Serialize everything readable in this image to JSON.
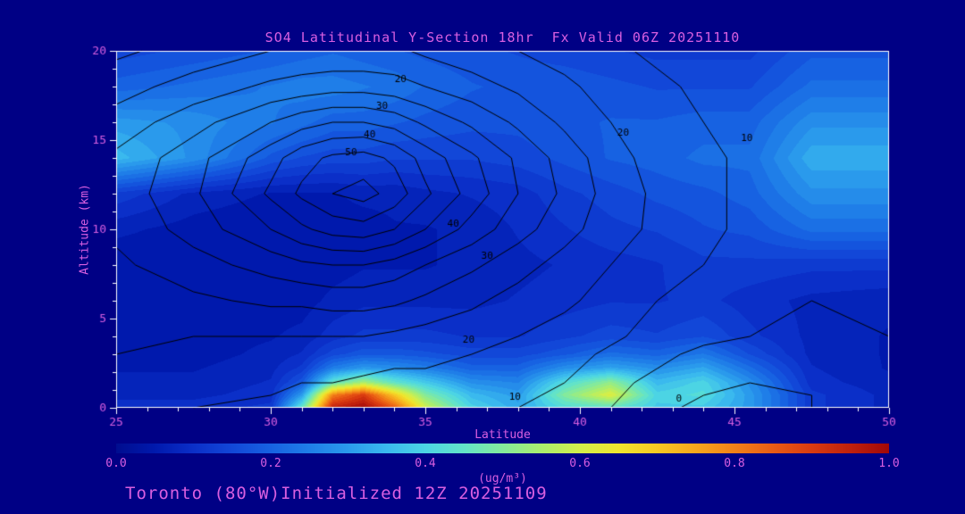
{
  "chart": {
    "title": "SO4 Latitudinal Y-Section 18hr  Fx Valid 06Z 20251110",
    "footer": "Toronto (80°W)Initialized 12Z 20251109",
    "colors": {
      "background": "#000085",
      "text_magenta": "#d95fe0",
      "frame": "#ffffff",
      "contour": "#000000"
    }
  },
  "chart_data": {
    "type": "heatmap",
    "title": "SO4 Latitudinal Y-Section 18hr  Fx Valid 06Z 20251110",
    "xlabel": "Latitude",
    "ylabel": "Altitude (km)",
    "x_range": [
      25,
      50
    ],
    "y_range": [
      0,
      20
    ],
    "x_major_ticks": [
      25,
      30,
      35,
      40,
      45,
      50
    ],
    "x_minor_step": 1,
    "y_major_ticks": [
      0,
      5,
      10,
      15,
      20
    ],
    "y_minor_step": 1,
    "lat_points": [
      25,
      27.5,
      30,
      31,
      32,
      33,
      34,
      35,
      36.5,
      38,
      39.5,
      41,
      42.5,
      44,
      45.5,
      47.5,
      50
    ],
    "alt_points": [
      0,
      0.7,
      1.4,
      2.2,
      3,
      4,
      6,
      8,
      10,
      12,
      14,
      16,
      18,
      20
    ],
    "fill_values_ugm3": [
      [
        0.1,
        0.1,
        0.12,
        0.45,
        0.95,
        1.0,
        0.85,
        0.6,
        0.4,
        0.32,
        0.42,
        0.45,
        0.38,
        0.38,
        0.3,
        0.12,
        0.08
      ],
      [
        0.08,
        0.08,
        0.1,
        0.3,
        0.8,
        0.9,
        0.7,
        0.5,
        0.35,
        0.3,
        0.5,
        0.62,
        0.4,
        0.42,
        0.3,
        0.12,
        0.08
      ],
      [
        0.07,
        0.07,
        0.09,
        0.18,
        0.45,
        0.55,
        0.45,
        0.38,
        0.28,
        0.26,
        0.42,
        0.52,
        0.35,
        0.4,
        0.28,
        0.1,
        0.07
      ],
      [
        0.06,
        0.06,
        0.08,
        0.12,
        0.25,
        0.3,
        0.28,
        0.25,
        0.2,
        0.2,
        0.28,
        0.32,
        0.28,
        0.32,
        0.22,
        0.09,
        0.06
      ],
      [
        0.05,
        0.05,
        0.07,
        0.09,
        0.15,
        0.18,
        0.18,
        0.17,
        0.15,
        0.15,
        0.18,
        0.22,
        0.2,
        0.24,
        0.16,
        0.08,
        0.06
      ],
      [
        0.05,
        0.05,
        0.06,
        0.07,
        0.1,
        0.12,
        0.12,
        0.12,
        0.11,
        0.11,
        0.13,
        0.15,
        0.14,
        0.16,
        0.12,
        0.08,
        0.06
      ],
      [
        0.04,
        0.04,
        0.05,
        0.05,
        0.07,
        0.08,
        0.08,
        0.08,
        0.08,
        0.09,
        0.1,
        0.11,
        0.11,
        0.12,
        0.1,
        0.08,
        0.07
      ],
      [
        0.04,
        0.04,
        0.04,
        0.04,
        0.05,
        0.06,
        0.06,
        0.06,
        0.07,
        0.08,
        0.09,
        0.1,
        0.11,
        0.13,
        0.13,
        0.12,
        0.12
      ],
      [
        0.07,
        0.05,
        0.04,
        0.04,
        0.05,
        0.05,
        0.06,
        0.06,
        0.07,
        0.09,
        0.11,
        0.13,
        0.14,
        0.16,
        0.17,
        0.22,
        0.22
      ],
      [
        0.13,
        0.08,
        0.06,
        0.06,
        0.06,
        0.07,
        0.07,
        0.08,
        0.09,
        0.1,
        0.13,
        0.15,
        0.17,
        0.18,
        0.2,
        0.28,
        0.28
      ],
      [
        0.35,
        0.28,
        0.18,
        0.16,
        0.15,
        0.15,
        0.14,
        0.14,
        0.14,
        0.15,
        0.17,
        0.19,
        0.2,
        0.22,
        0.22,
        0.33,
        0.33
      ],
      [
        0.3,
        0.28,
        0.24,
        0.22,
        0.2,
        0.2,
        0.19,
        0.18,
        0.17,
        0.17,
        0.18,
        0.19,
        0.19,
        0.2,
        0.2,
        0.28,
        0.28
      ],
      [
        0.2,
        0.22,
        0.24,
        0.25,
        0.25,
        0.24,
        0.23,
        0.21,
        0.19,
        0.18,
        0.18,
        0.17,
        0.16,
        0.16,
        0.16,
        0.22,
        0.22
      ],
      [
        0.15,
        0.17,
        0.19,
        0.2,
        0.21,
        0.2,
        0.19,
        0.18,
        0.17,
        0.16,
        0.15,
        0.14,
        0.13,
        0.13,
        0.13,
        0.18,
        0.18
      ]
    ],
    "colormap_stops": [
      [
        0.0,
        "#000d8f"
      ],
      [
        0.05,
        "#0019ad"
      ],
      [
        0.1,
        "#0b2fc8"
      ],
      [
        0.15,
        "#1247d8"
      ],
      [
        0.2,
        "#1762e2"
      ],
      [
        0.25,
        "#1f7ee8"
      ],
      [
        0.3,
        "#2a9aec"
      ],
      [
        0.35,
        "#3ab9ee"
      ],
      [
        0.4,
        "#4cd4e4"
      ],
      [
        0.45,
        "#63e3c8"
      ],
      [
        0.5,
        "#84ea9c"
      ],
      [
        0.55,
        "#aaee6e"
      ],
      [
        0.6,
        "#d2ef4b"
      ],
      [
        0.65,
        "#efe52e"
      ],
      [
        0.7,
        "#f7c823"
      ],
      [
        0.75,
        "#f7a61d"
      ],
      [
        0.8,
        "#f28118"
      ],
      [
        0.85,
        "#e95b14"
      ],
      [
        0.9,
        "#d93a10"
      ],
      [
        0.95,
        "#c0200c"
      ],
      [
        1.0,
        "#a00808"
      ]
    ],
    "colorbar": {
      "min": 0.0,
      "max": 1.0,
      "tick_labels": [
        "0.0",
        "0.2",
        "0.4",
        "0.6",
        "0.8",
        "1.0"
      ],
      "units": "(ug/m³)"
    },
    "contours": {
      "levels": [
        0,
        5,
        10,
        15,
        20,
        25,
        30,
        35,
        40,
        45,
        50,
        55
      ],
      "values": [
        [
          16,
          15,
          14,
          13,
          13,
          12,
          12,
          11,
          11,
          10,
          8,
          5,
          1,
          -1,
          -2,
          0,
          1
        ],
        [
          17,
          16,
          15,
          14,
          14,
          13,
          13,
          12,
          12,
          11,
          9,
          6,
          2,
          0,
          -1,
          0,
          1
        ],
        [
          18,
          17,
          16,
          15,
          15,
          14,
          14,
          13,
          13,
          12,
          10,
          7,
          3,
          1,
          0,
          1,
          2
        ],
        [
          19,
          18,
          17,
          17,
          16,
          16,
          15,
          15,
          14,
          13,
          11,
          8,
          5,
          3,
          2,
          2,
          3
        ],
        [
          20,
          19,
          19,
          18,
          18,
          17,
          17,
          16,
          15,
          14,
          12,
          9,
          6,
          4,
          3,
          3,
          4
        ],
        [
          21,
          20,
          20,
          20,
          20,
          20,
          19,
          18,
          17,
          15,
          13,
          11,
          8,
          6,
          5,
          4,
          5
        ],
        [
          22,
          24,
          26,
          26,
          27,
          27,
          26,
          24,
          21,
          18,
          16,
          13,
          10,
          8,
          7,
          5,
          6
        ],
        [
          24,
          28,
          32,
          34,
          35,
          35,
          33,
          30,
          26,
          22,
          18,
          15,
          12,
          10,
          8,
          7,
          7
        ],
        [
          26,
          32,
          40,
          44,
          47,
          48,
          45,
          40,
          33,
          27,
          22,
          17,
          14,
          11,
          9,
          8,
          8
        ],
        [
          27,
          34,
          46,
          51,
          55,
          57,
          53,
          46,
          38,
          30,
          24,
          18,
          14,
          11,
          9,
          8,
          8
        ],
        [
          26,
          33,
          43,
          48,
          51,
          52,
          49,
          43,
          36,
          29,
          23,
          17,
          13,
          11,
          9,
          8,
          8
        ],
        [
          22,
          28,
          35,
          38,
          40,
          40,
          38,
          34,
          29,
          24,
          19,
          15,
          12,
          10,
          8,
          7,
          7
        ],
        [
          18,
          22,
          26,
          27,
          28,
          28,
          27,
          25,
          22,
          19,
          16,
          13,
          11,
          9,
          8,
          6,
          6
        ],
        [
          14,
          17,
          20,
          21,
          21,
          21,
          21,
          19,
          17,
          15,
          13,
          11,
          9,
          8,
          7,
          5,
          5
        ]
      ],
      "labels": [
        {
          "text": "20",
          "lat": 34.2,
          "alt": 18.4
        },
        {
          "text": "30",
          "lat": 33.6,
          "alt": 16.9
        },
        {
          "text": "40",
          "lat": 33.2,
          "alt": 15.3
        },
        {
          "text": "50",
          "lat": 32.6,
          "alt": 14.3
        },
        {
          "text": "20",
          "lat": 41.4,
          "alt": 15.4
        },
        {
          "text": "10",
          "lat": 45.4,
          "alt": 15.1
        },
        {
          "text": "40",
          "lat": 35.9,
          "alt": 10.3
        },
        {
          "text": "30",
          "lat": 37.0,
          "alt": 8.5
        },
        {
          "text": "20",
          "lat": 36.4,
          "alt": 3.8
        },
        {
          "text": "10",
          "lat": 37.9,
          "alt": 0.6
        },
        {
          "text": "0",
          "lat": 43.2,
          "alt": 0.5
        }
      ]
    }
  }
}
